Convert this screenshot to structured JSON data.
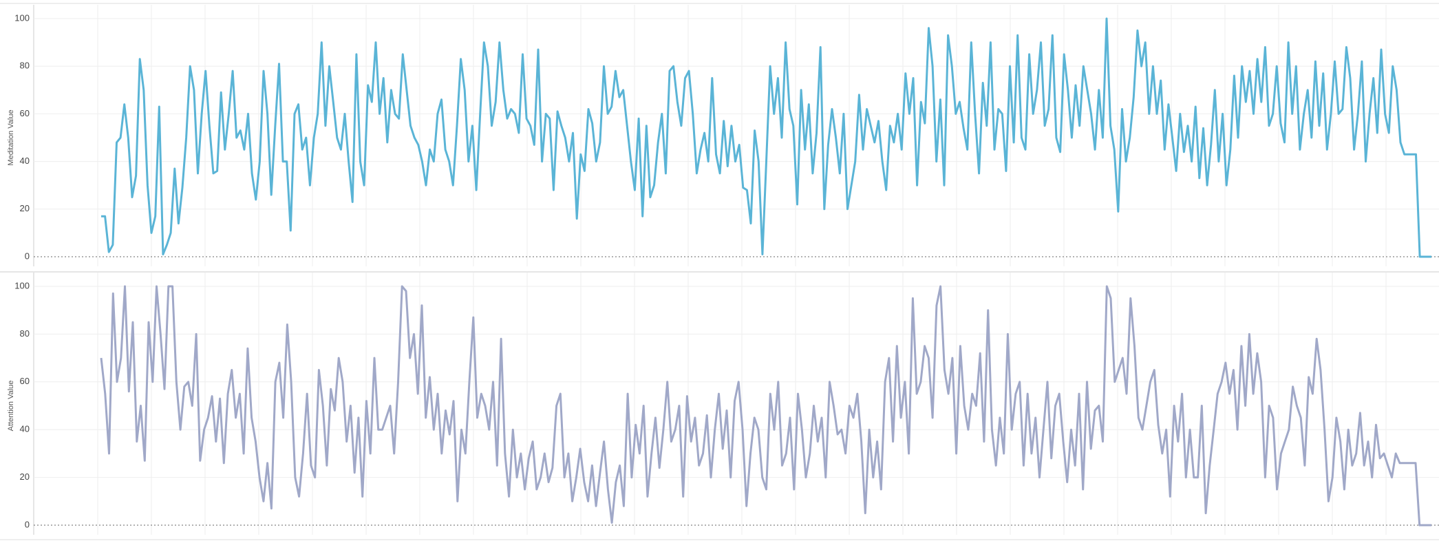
{
  "chart_data": [
    {
      "type": "line",
      "y_label": "Meditation Value",
      "color": "#5ab4d6",
      "ylim": [
        0,
        100
      ],
      "yticks": [
        0,
        20,
        40,
        60,
        80,
        100
      ],
      "grid": true,
      "values": [
        17,
        17,
        2,
        5,
        48,
        50,
        64,
        50,
        25,
        34,
        83,
        70,
        30,
        10,
        17,
        63,
        1,
        5,
        10,
        37,
        14,
        29,
        50,
        80,
        70,
        35,
        60,
        78,
        55,
        35,
        36,
        69,
        45,
        60,
        78,
        50,
        53,
        45,
        60,
        35,
        24,
        40,
        78,
        60,
        26,
        55,
        81,
        40,
        40,
        11,
        60,
        64,
        45,
        50,
        30,
        50,
        60,
        90,
        55,
        80,
        65,
        50,
        45,
        60,
        40,
        23,
        85,
        40,
        30,
        72,
        65,
        90,
        60,
        75,
        48,
        70,
        60,
        58,
        85,
        70,
        55,
        50,
        47,
        40,
        30,
        45,
        40,
        60,
        66,
        45,
        40,
        30,
        55,
        83,
        70,
        40,
        55,
        28,
        60,
        90,
        80,
        55,
        65,
        90,
        70,
        58,
        62,
        60,
        52,
        85,
        58,
        55,
        47,
        87,
        40,
        60,
        58,
        28,
        61,
        55,
        50,
        40,
        52,
        16,
        43,
        36,
        62,
        56,
        40,
        48,
        80,
        60,
        63,
        78,
        67,
        70,
        55,
        40,
        28,
        58,
        17,
        55,
        25,
        30,
        48,
        60,
        35,
        78,
        80,
        65,
        55,
        75,
        78,
        60,
        35,
        45,
        52,
        40,
        75,
        43,
        35,
        57,
        38,
        55,
        40,
        47,
        29,
        28,
        14,
        53,
        40,
        1,
        40,
        80,
        60,
        75,
        50,
        90,
        62,
        55,
        22,
        70,
        45,
        64,
        35,
        52,
        88,
        20,
        47,
        62,
        50,
        35,
        60,
        20,
        30,
        40,
        68,
        45,
        62,
        55,
        48,
        57,
        40,
        28,
        55,
        48,
        60,
        45,
        77,
        60,
        75,
        30,
        65,
        56,
        96,
        80,
        40,
        66,
        30,
        93,
        80,
        60,
        65,
        54,
        45,
        90,
        60,
        35,
        73,
        55,
        90,
        45,
        62,
        60,
        36,
        80,
        48,
        93,
        50,
        45,
        85,
        60,
        70,
        90,
        55,
        62,
        93,
        50,
        44,
        85,
        70,
        50,
        72,
        55,
        80,
        70,
        60,
        45,
        70,
        50,
        100,
        55,
        45,
        19,
        62,
        40,
        50,
        67,
        95,
        80,
        90,
        60,
        80,
        60,
        74,
        45,
        64,
        50,
        36,
        60,
        44,
        55,
        40,
        63,
        33,
        54,
        30,
        47,
        70,
        40,
        60,
        30,
        45,
        76,
        50,
        80,
        65,
        78,
        60,
        83,
        65,
        88,
        55,
        60,
        80,
        56,
        48,
        90,
        60,
        80,
        45,
        60,
        70,
        50,
        82,
        55,
        77,
        45,
        60,
        82,
        60,
        62,
        88,
        75,
        45,
        60,
        82,
        40,
        60,
        75,
        52,
        87,
        60,
        52,
        80,
        70,
        48,
        43,
        43,
        43,
        43,
        0,
        0,
        0,
        0
      ]
    },
    {
      "type": "line",
      "y_label": "Attention Value",
      "color": "#a0a8c8",
      "ylim": [
        0,
        100
      ],
      "yticks": [
        0,
        20,
        40,
        60,
        80,
        100
      ],
      "grid": true,
      "values": [
        70,
        55,
        30,
        97,
        60,
        70,
        100,
        56,
        85,
        35,
        50,
        27,
        85,
        60,
        100,
        80,
        57,
        100,
        100,
        60,
        40,
        58,
        60,
        50,
        80,
        27,
        40,
        45,
        54,
        35,
        53,
        26,
        55,
        65,
        45,
        55,
        30,
        74,
        45,
        35,
        20,
        10,
        26,
        7,
        60,
        68,
        45,
        84,
        60,
        20,
        12,
        30,
        55,
        25,
        20,
        65,
        50,
        25,
        57,
        48,
        70,
        60,
        35,
        50,
        22,
        45,
        12,
        52,
        30,
        70,
        40,
        40,
        45,
        50,
        30,
        60,
        100,
        98,
        70,
        80,
        55,
        92,
        45,
        62,
        40,
        55,
        30,
        48,
        38,
        52,
        10,
        40,
        30,
        60,
        87,
        45,
        55,
        50,
        40,
        60,
        25,
        78,
        30,
        12,
        40,
        20,
        30,
        15,
        28,
        35,
        15,
        20,
        30,
        18,
        24,
        50,
        55,
        20,
        30,
        10,
        20,
        32,
        18,
        10,
        25,
        8,
        22,
        35,
        15,
        1,
        18,
        25,
        8,
        55,
        20,
        42,
        30,
        50,
        12,
        30,
        45,
        24,
        40,
        60,
        35,
        40,
        50,
        12,
        54,
        35,
        45,
        25,
        30,
        46,
        20,
        40,
        55,
        32,
        48,
        20,
        52,
        60,
        40,
        8,
        30,
        45,
        40,
        20,
        15,
        55,
        40,
        60,
        25,
        30,
        45,
        15,
        55,
        40,
        20,
        30,
        50,
        35,
        45,
        20,
        60,
        50,
        38,
        40,
        30,
        50,
        45,
        55,
        35,
        5,
        40,
        20,
        35,
        15,
        60,
        70,
        35,
        75,
        45,
        60,
        30,
        95,
        55,
        60,
        75,
        70,
        45,
        92,
        100,
        65,
        55,
        70,
        30,
        75,
        50,
        40,
        55,
        50,
        72,
        35,
        90,
        40,
        25,
        45,
        30,
        80,
        40,
        55,
        60,
        25,
        55,
        30,
        45,
        20,
        40,
        60,
        28,
        50,
        55,
        35,
        18,
        40,
        25,
        55,
        15,
        60,
        32,
        48,
        50,
        35,
        100,
        95,
        60,
        65,
        70,
        55,
        95,
        75,
        45,
        40,
        50,
        60,
        65,
        42,
        30,
        40,
        12,
        50,
        35,
        55,
        20,
        40,
        20,
        20,
        50,
        5,
        25,
        40,
        55,
        60,
        68,
        55,
        65,
        40,
        75,
        50,
        80,
        55,
        72,
        60,
        20,
        50,
        45,
        15,
        30,
        35,
        40,
        58,
        50,
        45,
        25,
        62,
        55,
        78,
        65,
        40,
        10,
        20,
        45,
        35,
        15,
        40,
        25,
        30,
        47,
        25,
        35,
        20,
        42,
        28,
        30,
        25,
        20,
        30,
        26,
        26,
        26,
        26,
        26,
        0,
        0,
        0,
        0
      ]
    }
  ]
}
